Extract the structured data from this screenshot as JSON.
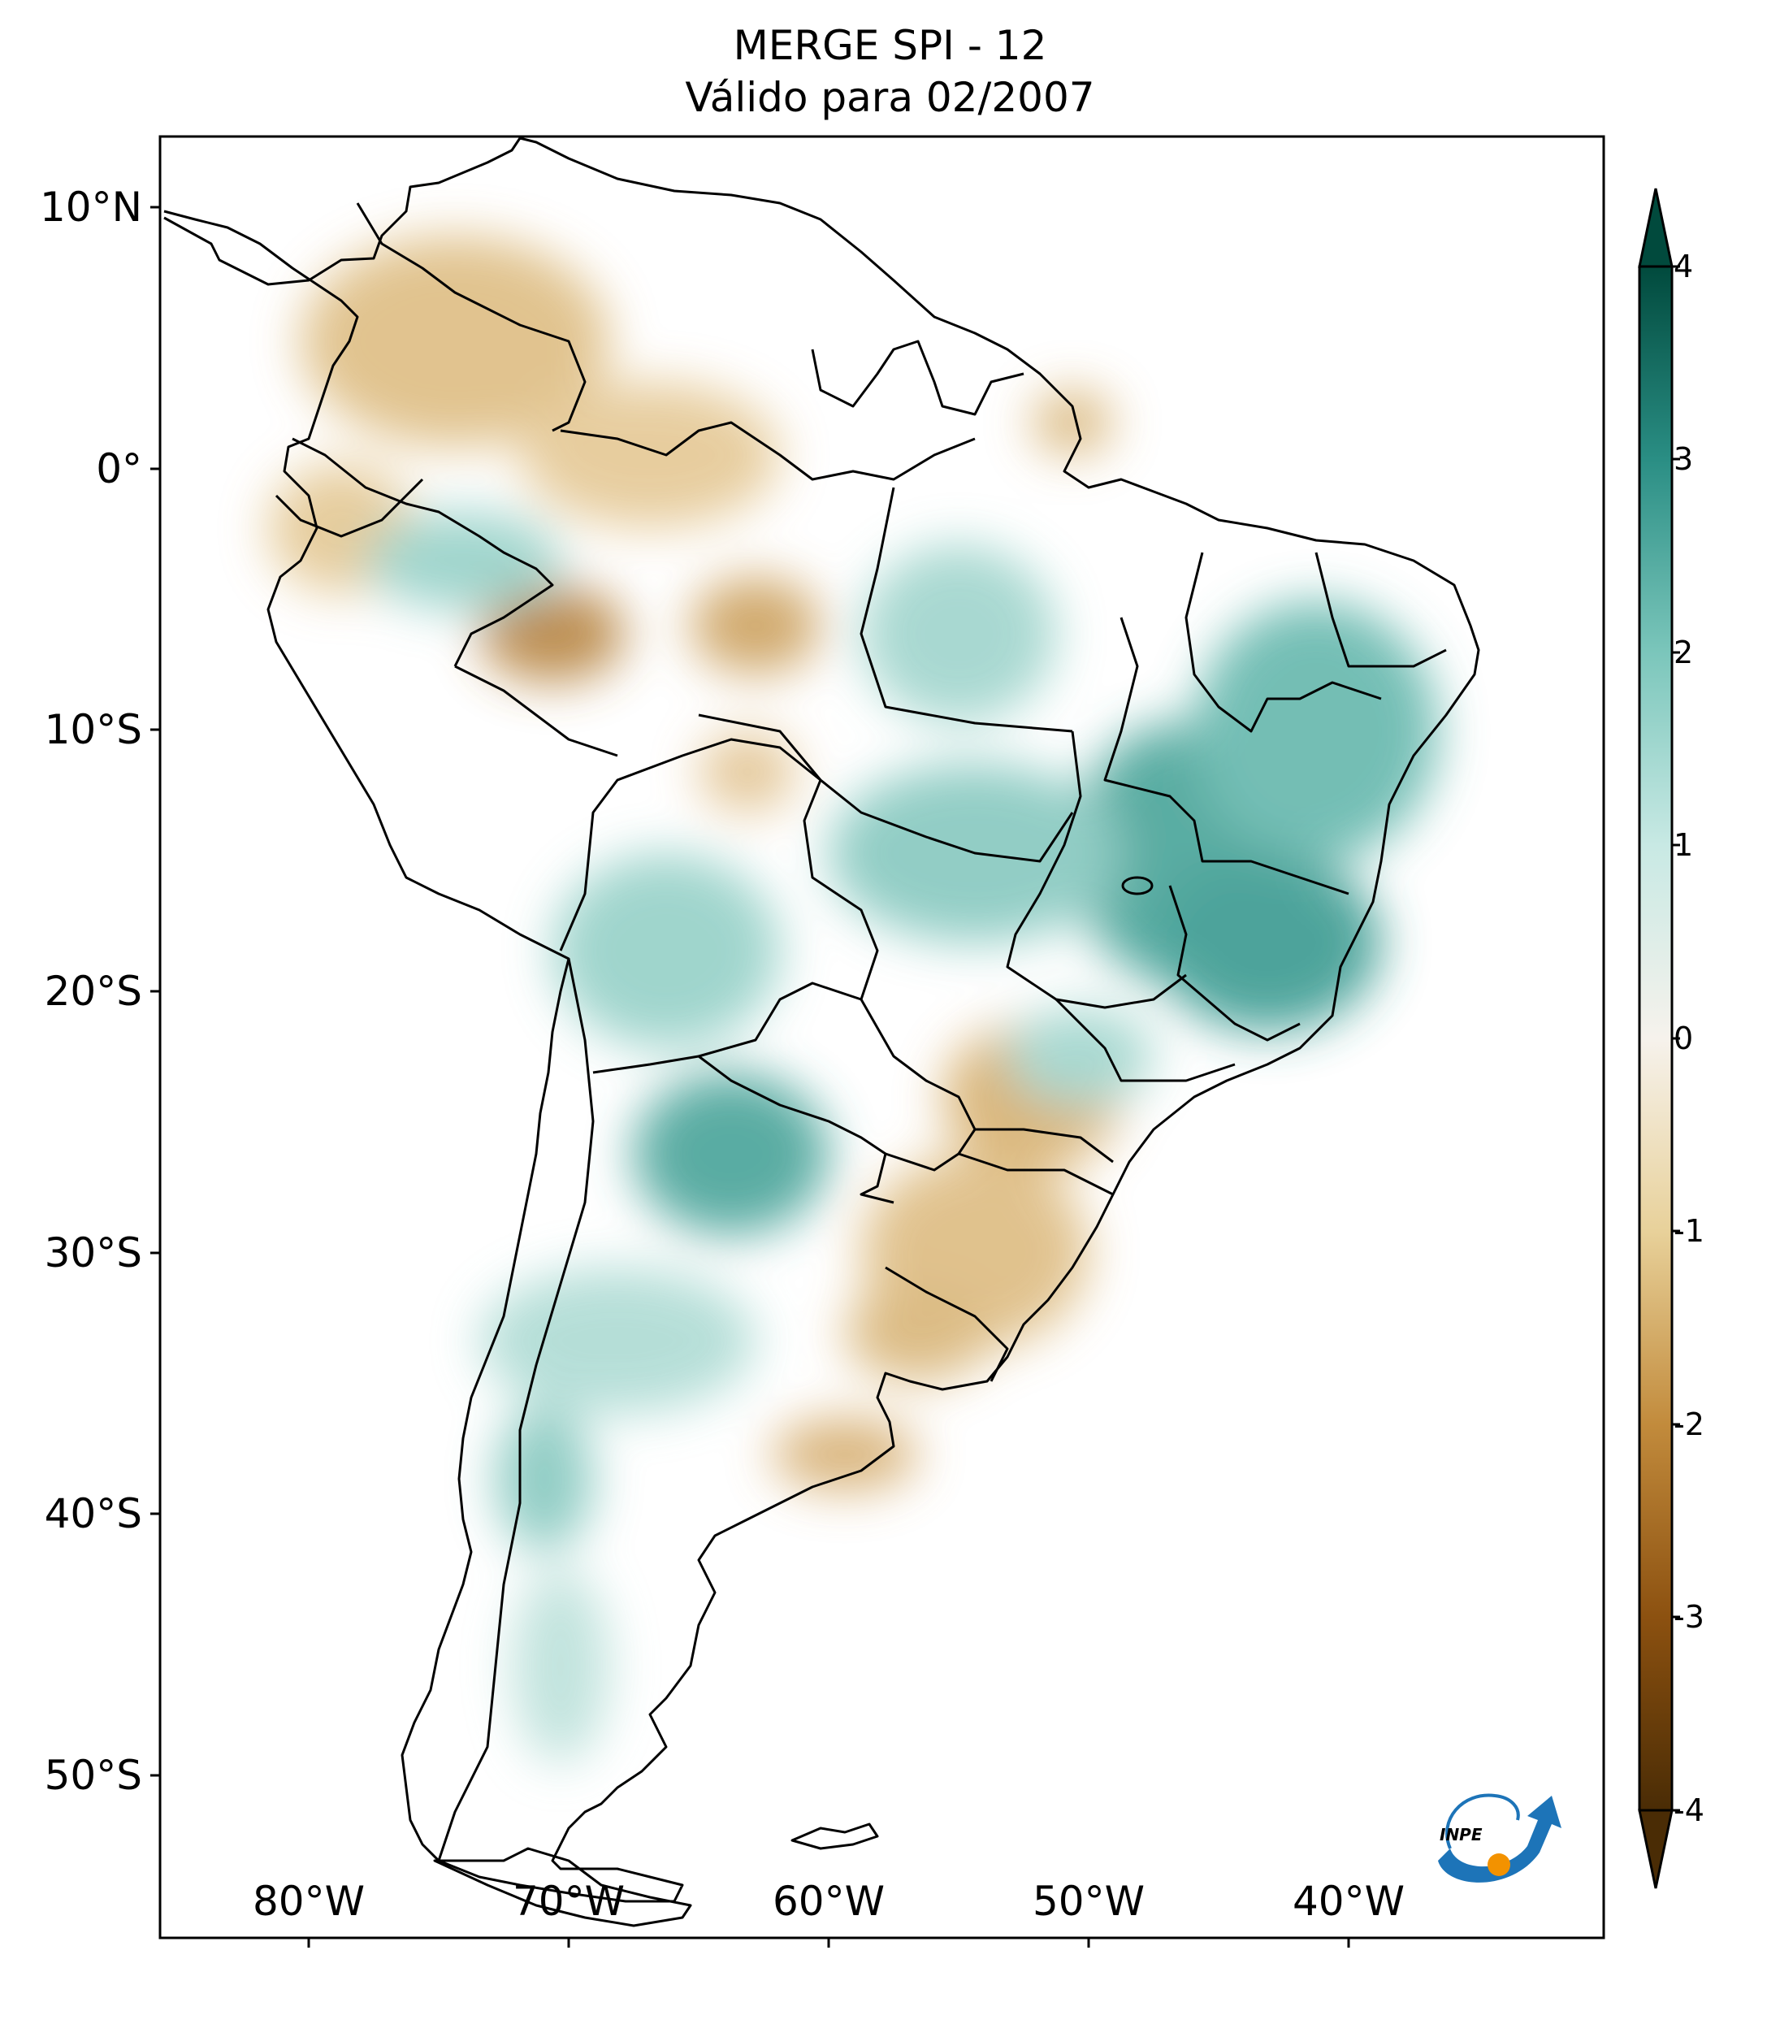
{
  "title": {
    "line1": "MERGE   SPI - 12",
    "line2": "Válido para 02/2007"
  },
  "axes": {
    "lat_ticks": [
      "10°N",
      "0°",
      "10°S",
      "20°S",
      "30°S",
      "40°S",
      "50°S"
    ],
    "lon_ticks": [
      "80°W",
      "70°W",
      "60°W",
      "50°W",
      "40°W"
    ]
  },
  "colorbar": {
    "labels": [
      "4",
      "3",
      "2",
      "1",
      "0",
      "-1",
      "-2",
      "-3",
      "-4"
    ],
    "min": -4,
    "max": 4,
    "colormap": "BrBG",
    "extend": "both",
    "colors": [
      "#4a2c05",
      "#8c5110",
      "#c28b3c",
      "#e8d19a",
      "#f6f2ec",
      "#c8e9e4",
      "#7bc6bb",
      "#2a8e84",
      "#014a3d"
    ]
  },
  "logo": {
    "text": "INPE"
  }
}
